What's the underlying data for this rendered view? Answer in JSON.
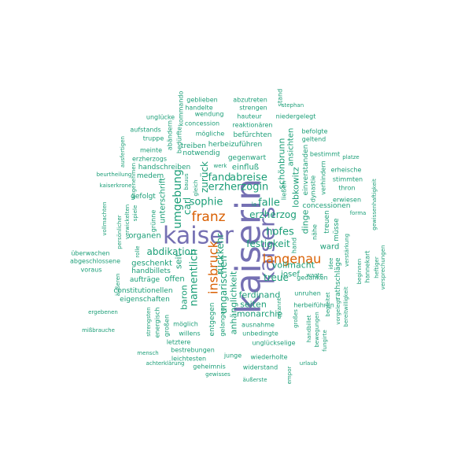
{
  "colors": {
    "background": "#ffffff",
    "group1": "#1b9e77",
    "group2": "#d95f02",
    "group3": "#7570b3"
  },
  "words": [
    {
      "text": "kaiserin",
      "group": "group3"
    },
    {
      "text": "kaiser",
      "group": "group3"
    },
    {
      "text": "kaisers",
      "group": "group3"
    },
    {
      "text": "franz",
      "group": "group2"
    },
    {
      "text": "langenau",
      "group": "group2"
    },
    {
      "text": "insbruck",
      "group": "group2"
    },
    {
      "text": "umgebung",
      "group": "group1"
    },
    {
      "text": "sophie",
      "group": "group1"
    },
    {
      "text": "erzherzogin",
      "group": "group1"
    },
    {
      "text": "erzherzog",
      "group": "group1"
    },
    {
      "text": "abreise",
      "group": "group1"
    },
    {
      "text": "falle",
      "group": "group1"
    },
    {
      "text": "hofes",
      "group": "group1"
    },
    {
      "text": "festigkeit",
      "group": "group1"
    },
    {
      "text": "abdikation",
      "group": "group1"
    },
    {
      "text": "namentlich",
      "group": "group1"
    },
    {
      "text": "fand",
      "group": "group1"
    },
    {
      "text": "zurück",
      "group": "group1"
    },
    {
      "text": "ungarischen",
      "group": "group1"
    },
    {
      "text": "rückkehr",
      "group": "group1"
    },
    {
      "text": "treue",
      "group": "group1"
    },
    {
      "text": "vollmacht",
      "group": "group1"
    },
    {
      "text": "ferdinand",
      "group": "group1"
    },
    {
      "text": "josef",
      "group": "group1"
    },
    {
      "text": "schönbrunn",
      "group": "group1"
    },
    {
      "text": "lobkowitz",
      "group": "group1"
    },
    {
      "text": "dinge",
      "group": "group1"
    },
    {
      "text": "carl",
      "group": "group1"
    },
    {
      "text": "seiten",
      "group": "group1"
    },
    {
      "text": "monarchie",
      "group": "group1"
    },
    {
      "text": "baron",
      "group": "group1"
    },
    {
      "text": "anhänglichkeit",
      "group": "group1"
    },
    {
      "text": "offen",
      "group": "group1"
    },
    {
      "text": "seit",
      "group": "group1"
    },
    {
      "text": "ward",
      "group": "group1"
    },
    {
      "text": "concessionen",
      "group": "group1"
    },
    {
      "text": "unterschrift",
      "group": "group1"
    },
    {
      "text": "organen",
      "group": "group1"
    },
    {
      "text": "geschenkt",
      "group": "group1"
    },
    {
      "text": "handbillets",
      "group": "group1"
    },
    {
      "text": "aufträge",
      "group": "group1"
    },
    {
      "text": "constitutionellen",
      "group": "group1"
    },
    {
      "text": "eigenschaften",
      "group": "group1"
    },
    {
      "text": "handschreiben",
      "group": "group1"
    },
    {
      "text": "medem",
      "group": "group1"
    },
    {
      "text": "gefolgt",
      "group": "group1"
    },
    {
      "text": "erzherzogs",
      "group": "group1"
    },
    {
      "text": "meinte",
      "group": "group1"
    },
    {
      "text": "truppe",
      "group": "group1"
    },
    {
      "text": "aufstands",
      "group": "group1"
    },
    {
      "text": "unglücke",
      "group": "group1"
    },
    {
      "text": "abändern",
      "group": "group1"
    },
    {
      "text": "bedürfte",
      "group": "group1"
    },
    {
      "text": "kommando",
      "group": "group1"
    },
    {
      "text": "geblieben",
      "group": "group1"
    },
    {
      "text": "handelte",
      "group": "group1"
    },
    {
      "text": "wendung",
      "group": "group1"
    },
    {
      "text": "concession",
      "group": "group1"
    },
    {
      "text": "mögliche",
      "group": "group1"
    },
    {
      "text": "abzutreten",
      "group": "group1"
    },
    {
      "text": "strengen",
      "group": "group1"
    },
    {
      "text": "hauteur",
      "group": "group1"
    },
    {
      "text": "reaktionären",
      "group": "group1"
    },
    {
      "text": "stand",
      "group": "group1"
    },
    {
      "text": "stephan",
      "group": "group1"
    },
    {
      "text": "niedergelegt",
      "group": "group1"
    },
    {
      "text": "befolgte",
      "group": "group1"
    },
    {
      "text": "geltend",
      "group": "group1"
    },
    {
      "text": "bestimmt",
      "group": "group1"
    },
    {
      "text": "platze",
      "group": "group1"
    },
    {
      "text": "erheische",
      "group": "group1"
    },
    {
      "text": "stimmten",
      "group": "group1"
    },
    {
      "text": "thron",
      "group": "group1"
    },
    {
      "text": "erwiesen",
      "group": "group1"
    },
    {
      "text": "forma",
      "group": "group1"
    },
    {
      "text": "gewissenhaftigkeit",
      "group": "group1"
    },
    {
      "text": "treiben",
      "group": "group1"
    },
    {
      "text": "herbeizuführen",
      "group": "group1"
    },
    {
      "text": "notwendig",
      "group": "group1"
    },
    {
      "text": "befürchten",
      "group": "group1"
    },
    {
      "text": "ansichten",
      "group": "group1"
    },
    {
      "text": "einverstanden",
      "group": "group1"
    },
    {
      "text": "dynastie",
      "group": "group1"
    },
    {
      "text": "verhindern",
      "group": "group1"
    },
    {
      "text": "gegenwart",
      "group": "group1"
    },
    {
      "text": "einfluß",
      "group": "group1"
    },
    {
      "text": "werk",
      "group": "group1"
    },
    {
      "text": "bauus",
      "group": "group1"
    },
    {
      "text": "gleich",
      "group": "group1"
    },
    {
      "text": "ließen",
      "group": "group1"
    },
    {
      "text": "beurtheilung",
      "group": "group1"
    },
    {
      "text": "kaiserkrone",
      "group": "group1"
    },
    {
      "text": "ausfertigen",
      "group": "group1"
    },
    {
      "text": "angenehmen",
      "group": "group1"
    },
    {
      "text": "vollmachten",
      "group": "group1"
    },
    {
      "text": "persönlicher",
      "group": "group1"
    },
    {
      "text": "verwickelten",
      "group": "group1"
    },
    {
      "text": "spiele",
      "group": "group1"
    },
    {
      "text": "rolle",
      "group": "group1"
    },
    {
      "text": "grünne",
      "group": "group1"
    },
    {
      "text": "überwachen",
      "group": "group1"
    },
    {
      "text": "abgeschlossene",
      "group": "group1"
    },
    {
      "text": "voraus",
      "group": "group1"
    },
    {
      "text": "äußeren",
      "group": "group1"
    },
    {
      "text": "ergebenen",
      "group": "group1"
    },
    {
      "text": "mißbrauche",
      "group": "group1"
    },
    {
      "text": "strengsten",
      "group": "group1"
    },
    {
      "text": "energisch",
      "group": "group1"
    },
    {
      "text": "großen",
      "group": "group1"
    },
    {
      "text": "möglich",
      "group": "group1"
    },
    {
      "text": "willens",
      "group": "group1"
    },
    {
      "text": "letztere",
      "group": "group1"
    },
    {
      "text": "bestrebungen",
      "group": "group1"
    },
    {
      "text": "mensch",
      "group": "group1"
    },
    {
      "text": "leichtesten",
      "group": "group1"
    },
    {
      "text": "achterklärung",
      "group": "group1"
    },
    {
      "text": "geheimnis",
      "group": "group1"
    },
    {
      "text": "gewisses",
      "group": "group1"
    },
    {
      "text": "junge",
      "group": "group1"
    },
    {
      "text": "wiederholte",
      "group": "group1"
    },
    {
      "text": "widerstand",
      "group": "group1"
    },
    {
      "text": "äußerste",
      "group": "group1"
    },
    {
      "text": "empor",
      "group": "group1"
    },
    {
      "text": "urlaub",
      "group": "group1"
    },
    {
      "text": "unglückselige",
      "group": "group1"
    },
    {
      "text": "unbedingte",
      "group": "group1"
    },
    {
      "text": "ausnahme",
      "group": "group1"
    },
    {
      "text": "herbeiführen",
      "group": "group1"
    },
    {
      "text": "gedanken",
      "group": "group1"
    },
    {
      "text": "unruhen",
      "group": "group1"
    },
    {
      "text": "wagte",
      "group": "group1"
    },
    {
      "text": "rathschläge",
      "group": "group1"
    },
    {
      "text": "idee",
      "group": "group1"
    },
    {
      "text": "treuen",
      "group": "group1"
    },
    {
      "text": "nähe",
      "group": "group1"
    },
    {
      "text": "müsse",
      "group": "group1"
    },
    {
      "text": "verstärkung",
      "group": "group1"
    },
    {
      "text": "hannekart",
      "group": "group1"
    },
    {
      "text": "beginnen",
      "group": "group1"
    },
    {
      "text": "heftiger",
      "group": "group1"
    },
    {
      "text": "versprechungen",
      "group": "group1"
    },
    {
      "text": "bereitwilligkeit",
      "group": "group1"
    },
    {
      "text": "vorgelegt",
      "group": "group1"
    },
    {
      "text": "begleitet",
      "group": "group1"
    },
    {
      "text": "fungirte",
      "group": "group1"
    },
    {
      "text": "bewegungen",
      "group": "group1"
    },
    {
      "text": "handbillet",
      "group": "group1"
    },
    {
      "text": "großes",
      "group": "group1"
    },
    {
      "text": "erkannt",
      "group": "group1"
    },
    {
      "text": "hand",
      "group": "group1"
    },
    {
      "text": "la",
      "group": "group1"
    },
    {
      "text": "entgegen",
      "group": "group1"
    },
    {
      "text": "gelangen",
      "group": "group1"
    }
  ]
}
